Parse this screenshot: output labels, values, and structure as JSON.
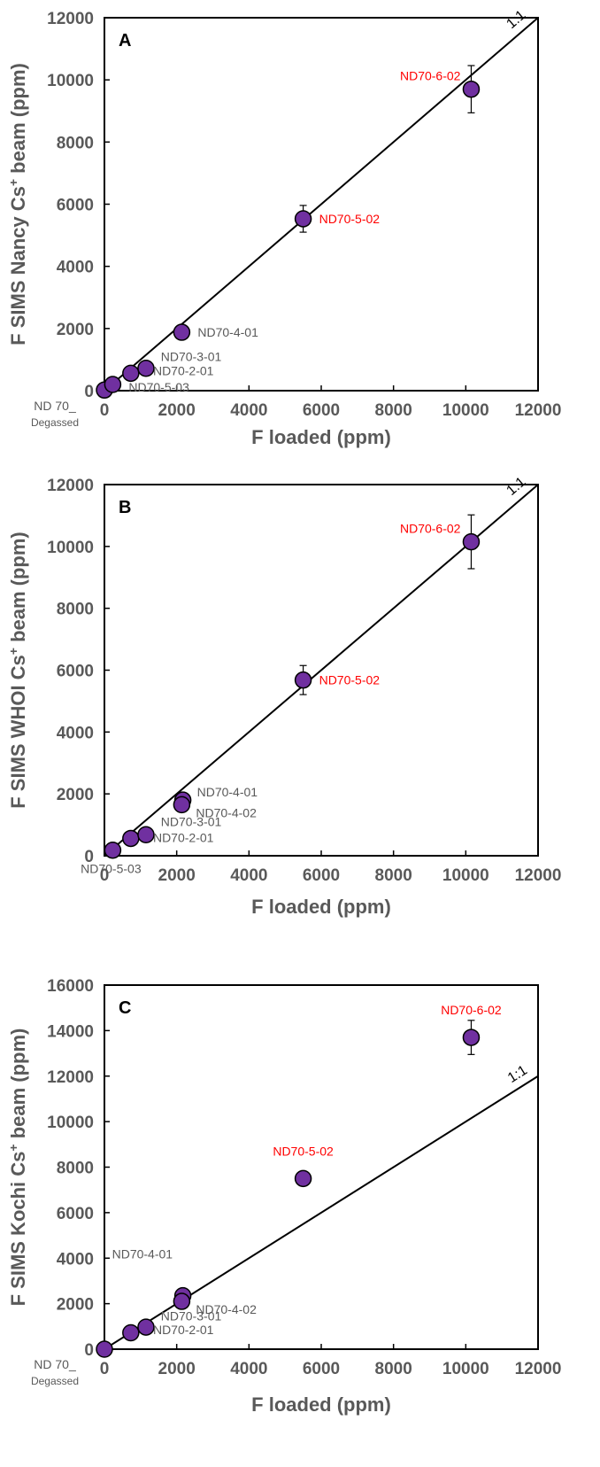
{
  "colors": {
    "marker_fill": "#7030a0",
    "marker_stroke": "#000000",
    "label_default": "#595959",
    "label_highlight": "#ff0000",
    "axis_text": "#595959"
  },
  "chart_data": [
    {
      "type": "scatter",
      "panel": "A",
      "xlabel": "F loaded (ppm)",
      "ylabel_main": "F SIMS Nancy Cs",
      "ylabel_sup": "+",
      "ylabel_end": " beam (ppm)",
      "xlim": [
        0,
        12000
      ],
      "ylim": [
        0,
        12000
      ],
      "xticks": [
        "0",
        "2000",
        "4000",
        "6000",
        "8000",
        "10000",
        "12000"
      ],
      "yticks": [
        "0",
        "2000",
        "4000",
        "6000",
        "8000",
        "10000",
        "12000"
      ],
      "reference_line_label": "1:1",
      "points": [
        {
          "x": 0,
          "y": 20,
          "err": 0,
          "label": "ND 70_\nDegassed",
          "highlight": false
        },
        {
          "x": 230,
          "y": 200,
          "err": 0,
          "label": "ND70-5-03",
          "highlight": false
        },
        {
          "x": 730,
          "y": 560,
          "err": 0,
          "label": "ND70-3-01",
          "highlight": false
        },
        {
          "x": 1150,
          "y": 720,
          "err": 0,
          "label": "ND70-2-01",
          "highlight": false
        },
        {
          "x": 2140,
          "y": 1880,
          "err": 0,
          "label": "ND70-4-01",
          "highlight": false
        },
        {
          "x": 5500,
          "y": 5530,
          "err": 430,
          "label": "ND70-5-02",
          "highlight": true
        },
        {
          "x": 10150,
          "y": 9700,
          "err": 760,
          "label": "ND70-6-02",
          "highlight": true
        }
      ]
    },
    {
      "type": "scatter",
      "panel": "B",
      "xlabel": "F loaded (ppm)",
      "ylabel_main": "F SIMS WHOI Cs",
      "ylabel_sup": "+",
      "ylabel_end": " beam  (ppm)",
      "xlim": [
        0,
        12000
      ],
      "ylim": [
        0,
        12000
      ],
      "xticks": [
        "0",
        "2000",
        "4000",
        "6000",
        "8000",
        "10000",
        "12000"
      ],
      "yticks": [
        "0",
        "2000",
        "4000",
        "6000",
        "8000",
        "10000",
        "12000"
      ],
      "reference_line_label": "1:1",
      "points": [
        {
          "x": 230,
          "y": 180,
          "err": 0,
          "label": "ND70-5-03",
          "highlight": false
        },
        {
          "x": 730,
          "y": 560,
          "err": 0,
          "label": "ND70-3-01",
          "highlight": false
        },
        {
          "x": 1150,
          "y": 680,
          "err": 0,
          "label": "ND70-2-01",
          "highlight": false
        },
        {
          "x": 2170,
          "y": 1800,
          "err": 0,
          "label": "ND70-4-01",
          "highlight": false
        },
        {
          "x": 2140,
          "y": 1650,
          "err": 0,
          "label": "ND70-4-02",
          "highlight": false
        },
        {
          "x": 5500,
          "y": 5680,
          "err": 470,
          "label": "ND70-5-02",
          "highlight": true
        },
        {
          "x": 10150,
          "y": 10150,
          "err": 870,
          "label": "ND70-6-02",
          "highlight": true
        }
      ]
    },
    {
      "type": "scatter",
      "panel": "C",
      "xlabel": "F loaded (ppm)",
      "ylabel_main": "F SIMS Kochi Cs",
      "ylabel_sup": "+",
      "ylabel_end": " beam (ppm)",
      "xlim": [
        0,
        12000
      ],
      "ylim": [
        0,
        16000
      ],
      "xticks": [
        "0",
        "2000",
        "4000",
        "6000",
        "8000",
        "10000",
        "12000"
      ],
      "yticks": [
        "0",
        "2000",
        "4000",
        "6000",
        "8000",
        "10000",
        "12000",
        "14000",
        "16000"
      ],
      "reference_line_label": "1:1",
      "points": [
        {
          "x": 0,
          "y": 0,
          "err": 0,
          "label": "ND 70_\nDegassed",
          "highlight": false
        },
        {
          "x": 730,
          "y": 720,
          "err": 0,
          "label": "ND70-3-01",
          "highlight": false
        },
        {
          "x": 1150,
          "y": 970,
          "err": 0,
          "label": "ND70-2-01",
          "highlight": false
        },
        {
          "x": 2170,
          "y": 2350,
          "err": 0,
          "label": "ND70-4-01",
          "highlight": false
        },
        {
          "x": 2140,
          "y": 2100,
          "err": 0,
          "label": "ND70-4-02",
          "highlight": false
        },
        {
          "x": 5500,
          "y": 7500,
          "err": 300,
          "label": "ND70-5-02",
          "highlight": true
        },
        {
          "x": 10150,
          "y": 13700,
          "err": 750,
          "label": "ND70-6-02",
          "highlight": true
        }
      ]
    }
  ]
}
